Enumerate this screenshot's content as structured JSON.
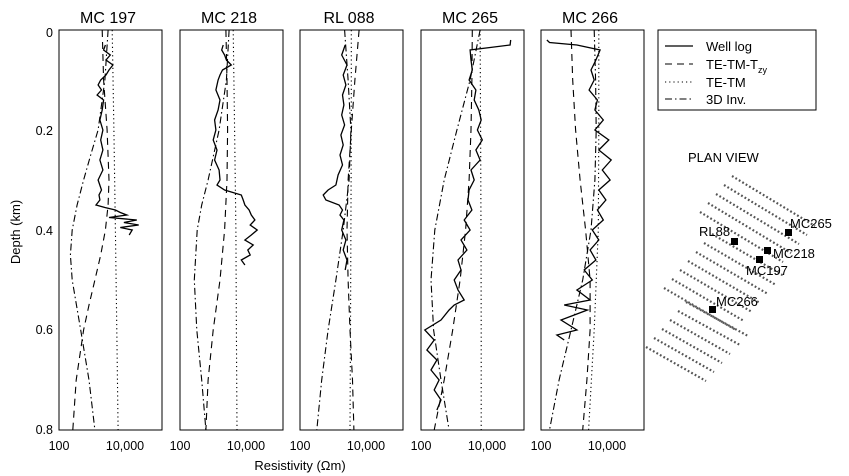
{
  "chart_data": {
    "type": "line",
    "ylabel": "Depth (km)",
    "xlabel": "Resistivity (Ωm)",
    "y_ticks": [
      "0",
      "0.2",
      "0.4",
      "0.6",
      "0.8"
    ],
    "ylim": [
      0,
      0.8
    ],
    "y_reversed": true,
    "x_scale": "log",
    "x_ticks": [
      "100",
      "10,000"
    ],
    "legend": {
      "placement": "right",
      "entries": [
        "Well log",
        "TE-TM-T",
        "TE-TM",
        "3D Inv."
      ],
      "tetmzy_subscript": "zy"
    },
    "panels": [
      {
        "title": "MC 197",
        "well_log": {
          "depth": [
            0.03,
            0.04,
            0.05,
            0.06,
            0.07,
            0.08,
            0.09,
            0.1,
            0.11,
            0.12,
            0.13,
            0.14,
            0.16,
            0.18,
            0.2,
            0.22,
            0.24,
            0.26,
            0.28,
            0.3,
            0.32,
            0.33,
            0.34,
            0.35,
            0.355,
            0.36,
            0.365,
            0.37,
            0.375,
            0.38,
            0.385,
            0.39,
            0.395,
            0.4,
            0.41
          ],
          "res": [
            2500,
            2200,
            3500,
            2600,
            4200,
            3200,
            2600,
            1800,
            1500,
            1900,
            1400,
            2200,
            2000,
            1700,
            2100,
            1800,
            2100,
            1700,
            2100,
            1500,
            1900,
            1600,
            1700,
            1300,
            2400,
            5000,
            7000,
            11000,
            3200,
            22000,
            9000,
            25000,
            7000,
            16000,
            13000
          ]
        },
        "te_tm_tzy": {
          "depth": [
            0,
            0.1,
            0.2,
            0.3,
            0.35,
            0.4,
            0.45,
            0.5,
            0.55,
            0.6,
            0.7,
            0.8
          ],
          "res": [
            2000,
            2200,
            2800,
            3200,
            3000,
            2500,
            1800,
            1200,
            800,
            550,
            330,
            260
          ]
        },
        "te_tm": {
          "depth": [
            0,
            0.2,
            0.4,
            0.6,
            0.8
          ],
          "res": [
            4000,
            4500,
            5000,
            5500,
            6000
          ]
        },
        "inv_3d": {
          "depth": [
            0,
            0.1,
            0.2,
            0.25,
            0.3,
            0.35,
            0.4,
            0.45,
            0.5,
            0.6,
            0.7,
            0.8
          ],
          "res": [
            3000,
            2400,
            1500,
            900,
            550,
            350,
            250,
            220,
            250,
            450,
            800,
            1200
          ]
        }
      },
      {
        "title": "MC 218",
        "well_log": {
          "depth": [
            0.03,
            0.04,
            0.05,
            0.06,
            0.07,
            0.08,
            0.09,
            0.1,
            0.12,
            0.14,
            0.16,
            0.18,
            0.2,
            0.22,
            0.24,
            0.26,
            0.28,
            0.3,
            0.31,
            0.32,
            0.33,
            0.34,
            0.35,
            0.36,
            0.37,
            0.38,
            0.39,
            0.4,
            0.41,
            0.42,
            0.43,
            0.44,
            0.45,
            0.46,
            0.47
          ],
          "res": [
            2000,
            1800,
            2200,
            2500,
            3500,
            1900,
            1600,
            1400,
            1200,
            1600,
            1400,
            1100,
            1200,
            1000,
            1300,
            1100,
            1500,
            1600,
            1300,
            2200,
            7000,
            8000,
            9000,
            12000,
            14000,
            18000,
            13000,
            21000,
            14000,
            9000,
            16000,
            11000,
            13000,
            7000,
            9000
          ]
        },
        "te_tm_tzy": {
          "depth": [
            0,
            0.1,
            0.2,
            0.3,
            0.4,
            0.5,
            0.6,
            0.7,
            0.8
          ],
          "res": [
            2400,
            2600,
            2700,
            2600,
            2200,
            1600,
            1000,
            700,
            600
          ]
        },
        "te_tm": {
          "depth": [
            0,
            0.2,
            0.4,
            0.6,
            0.8
          ],
          "res": [
            4000,
            4400,
            4800,
            5000,
            5200
          ]
        },
        "inv_3d": {
          "depth": [
            0,
            0.1,
            0.2,
            0.3,
            0.35,
            0.4,
            0.5,
            0.6,
            0.7,
            0.8
          ],
          "res": [
            3000,
            2500,
            1500,
            700,
            450,
            330,
            270,
            320,
            450,
            600
          ]
        }
      },
      {
        "title": "RL 088",
        "well_log": {
          "depth": [
            0.03,
            0.05,
            0.07,
            0.09,
            0.11,
            0.13,
            0.15,
            0.17,
            0.19,
            0.21,
            0.23,
            0.25,
            0.27,
            0.29,
            0.31,
            0.32,
            0.33,
            0.34,
            0.35,
            0.36,
            0.37,
            0.38,
            0.4,
            0.42,
            0.44,
            0.46,
            0.48
          ],
          "res": [
            2300,
            1800,
            2600,
            2000,
            2400,
            1900,
            2100,
            1800,
            2200,
            1700,
            2000,
            1600,
            1900,
            1400,
            1200,
            700,
            500,
            600,
            1500,
            1900,
            1600,
            2100,
            1800,
            2400,
            2000,
            2600,
            2300
          ]
        },
        "te_tm_tzy": {
          "depth": [
            0,
            0.1,
            0.2,
            0.3,
            0.4,
            0.5,
            0.6,
            0.7,
            0.8
          ],
          "res": [
            6000,
            4500,
            3500,
            2800,
            2600,
            2800,
            3200,
            3800,
            4200
          ]
        },
        "te_tm": {
          "depth": [
            0,
            0.2,
            0.4,
            0.6,
            0.8
          ],
          "res": [
            3500,
            3500,
            3400,
            3300,
            3200
          ]
        },
        "inv_3d": {
          "depth": [
            0,
            0.1,
            0.2,
            0.3,
            0.4,
            0.5,
            0.6,
            0.7,
            0.8
          ],
          "res": [
            2200,
            2800,
            3400,
            3000,
            2000,
            1200,
            700,
            450,
            320
          ]
        }
      },
      {
        "title": "MC 265",
        "well_log": {
          "depth": [
            0.02,
            0.03,
            0.035,
            0.04,
            0.06,
            0.08,
            0.1,
            0.12,
            0.14,
            0.16,
            0.18,
            0.2,
            0.22,
            0.24,
            0.26,
            0.28,
            0.3,
            0.32,
            0.34,
            0.36,
            0.38,
            0.4,
            0.42,
            0.44,
            0.46,
            0.48,
            0.5,
            0.52,
            0.54,
            0.55,
            0.56,
            0.58,
            0.6,
            0.62,
            0.64,
            0.66,
            0.68,
            0.7,
            0.72,
            0.74,
            0.76
          ],
          "res": [
            50000,
            48000,
            12000,
            3000,
            3200,
            3500,
            2800,
            4500,
            4000,
            5500,
            6500,
            5000,
            7000,
            4500,
            6000,
            3200,
            4000,
            2800,
            2600,
            3400,
            2000,
            3000,
            1600,
            2400,
            1300,
            1600,
            1000,
            1300,
            2000,
            1000,
            700,
            400,
            130,
            250,
            150,
            300,
            200,
            350,
            250,
            400,
            300
          ]
        },
        "te_tm_tzy": {
          "depth": [
            0,
            0.1,
            0.2,
            0.3,
            0.4,
            0.5,
            0.6,
            0.7,
            0.8
          ],
          "res": [
            3500,
            3400,
            3200,
            2800,
            2200,
            1500,
            900,
            500,
            250
          ]
        },
        "te_tm": {
          "depth": [
            0,
            0.2,
            0.4,
            0.6,
            0.8
          ],
          "res": [
            6000,
            6200,
            6400,
            6500,
            6500
          ]
        },
        "inv_3d": {
          "depth": [
            0,
            0.1,
            0.2,
            0.3,
            0.4,
            0.5,
            0.6,
            0.7,
            0.8
          ],
          "res": [
            6000,
            3000,
            1200,
            500,
            260,
            200,
            240,
            400,
            700
          ]
        }
      },
      {
        "title": "MC 266",
        "well_log": {
          "depth": [
            0.02,
            0.025,
            0.03,
            0.04,
            0.06,
            0.08,
            0.1,
            0.12,
            0.14,
            0.16,
            0.18,
            0.2,
            0.22,
            0.24,
            0.26,
            0.28,
            0.3,
            0.32,
            0.34,
            0.36,
            0.38,
            0.4,
            0.42,
            0.44,
            0.46,
            0.48,
            0.5,
            0.52,
            0.54,
            0.55,
            0.56,
            0.58,
            0.6,
            0.61,
            0.62
          ],
          "res": [
            150,
            180,
            1200,
            6000,
            4500,
            3200,
            4000,
            2800,
            5000,
            4200,
            7500,
            4200,
            11000,
            5500,
            13000,
            7000,
            12000,
            5500,
            9000,
            5000,
            7500,
            3500,
            5500,
            3000,
            4500,
            2000,
            3500,
            1200,
            3000,
            500,
            2500,
            400,
            1200,
            300,
            500
          ]
        },
        "te_tm_tzy": {
          "depth": [
            0,
            0.1,
            0.2,
            0.3,
            0.4,
            0.5,
            0.6,
            0.7,
            0.8
          ],
          "res": [
            800,
            900,
            1100,
            1500,
            2200,
            3000,
            3000,
            2400,
            1800
          ]
        },
        "te_tm": {
          "depth": [
            0,
            0.2,
            0.4,
            0.6,
            0.8
          ],
          "res": [
            5500,
            5500,
            5300,
            4000,
            2700
          ]
        },
        "inv_3d": {
          "depth": [
            0,
            0.1,
            0.2,
            0.3,
            0.4,
            0.5,
            0.6,
            0.7,
            0.8
          ],
          "res": [
            4000,
            4400,
            4600,
            4200,
            3200,
            1800,
            800,
            350,
            180
          ]
        }
      }
    ]
  },
  "plan_view": {
    "title": "PLAN VIEW",
    "wells": [
      "MC265",
      "RL88",
      "MC218",
      "MC197",
      "MC266"
    ]
  }
}
